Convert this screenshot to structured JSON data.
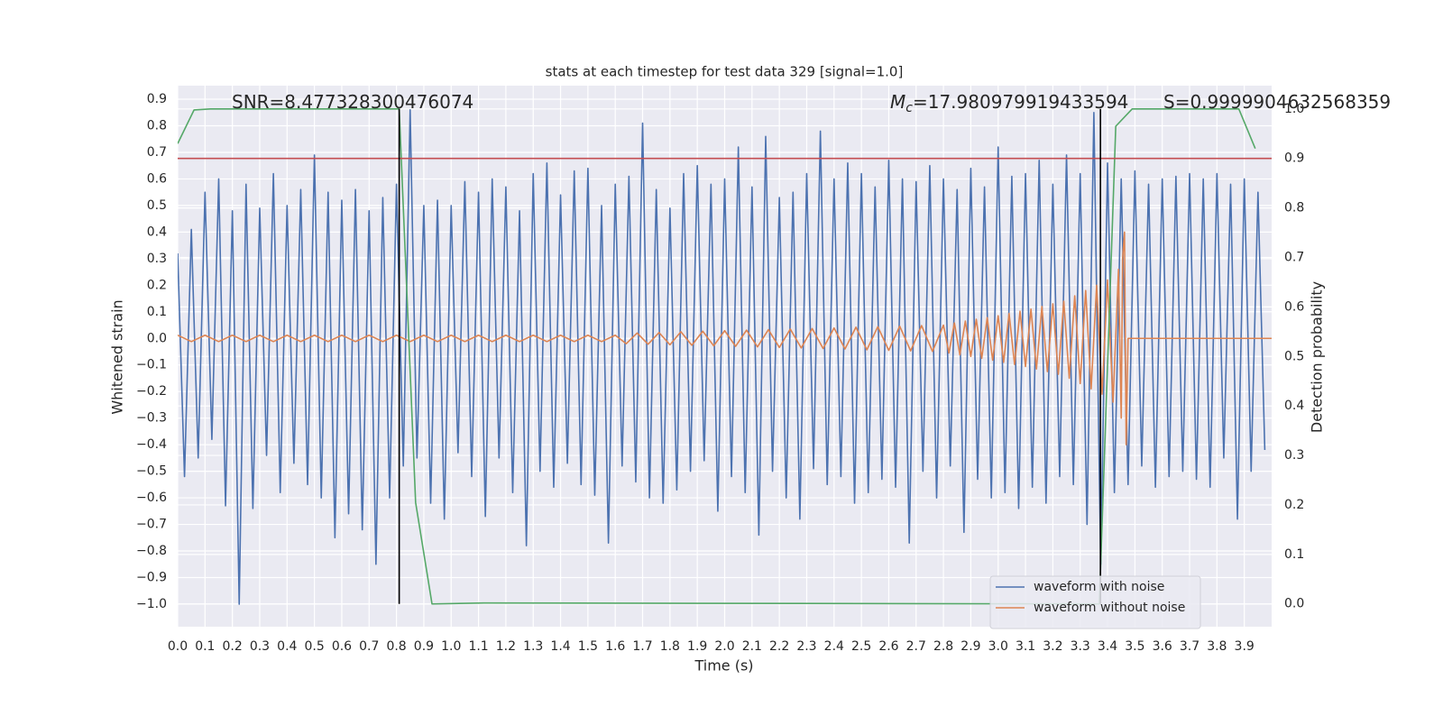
{
  "chart_data": {
    "type": "line",
    "title": "stats at each timestep for test data 329 [signal=1.0]",
    "x_label": "Time (s)",
    "y_label": "Whitened strain",
    "y2_label": "Detection probability",
    "annotations": [
      {
        "text": "SNR=8.477328300476074"
      },
      {
        "symbol": "M",
        "subscript": "c",
        "text": "=17.980979919433594"
      },
      {
        "text": "S=0.9999904632568359"
      }
    ],
    "xlim": [
      0,
      4
    ],
    "ylim": [
      -1.085,
      0.951
    ],
    "y2lim": [
      -0.046,
      1.047
    ],
    "grid": true,
    "legend": "lower right",
    "xticks": [
      {
        "value": 0,
        "label": "0.0"
      },
      {
        "value": 0.1,
        "label": "0.1"
      },
      {
        "value": 0.2,
        "label": "0.2"
      },
      {
        "value": 0.3,
        "label": "0.3"
      },
      {
        "value": 0.4,
        "label": "0.4"
      },
      {
        "value": 0.5,
        "label": "0.5"
      },
      {
        "value": 0.6,
        "label": "0.6"
      },
      {
        "value": 0.7,
        "label": "0.7"
      },
      {
        "value": 0.8,
        "label": "0.8"
      },
      {
        "value": 0.9,
        "label": "0.9"
      },
      {
        "value": 1,
        "label": "1.0"
      },
      {
        "value": 1.1,
        "label": "1.1"
      },
      {
        "value": 1.2,
        "label": "1.2"
      },
      {
        "value": 1.3,
        "label": "1.3"
      },
      {
        "value": 1.4,
        "label": "1.4"
      },
      {
        "value": 1.5,
        "label": "1.5"
      },
      {
        "value": 1.6,
        "label": "1.6"
      },
      {
        "value": 1.7,
        "label": "1.7"
      },
      {
        "value": 1.8,
        "label": "1.8"
      },
      {
        "value": 1.9,
        "label": "1.9"
      },
      {
        "value": 2,
        "label": "2.0"
      },
      {
        "value": 2.1,
        "label": "2.1"
      },
      {
        "value": 2.2,
        "label": "2.2"
      },
      {
        "value": 2.3,
        "label": "2.3"
      },
      {
        "value": 2.4,
        "label": "2.4"
      },
      {
        "value": 2.5,
        "label": "2.5"
      },
      {
        "value": 2.6,
        "label": "2.6"
      },
      {
        "value": 2.7,
        "label": "2.7"
      },
      {
        "value": 2.8,
        "label": "2.8"
      },
      {
        "value": 2.9,
        "label": "2.9"
      },
      {
        "value": 3,
        "label": "3.0"
      },
      {
        "value": 3.1,
        "label": "3.1"
      },
      {
        "value": 3.2,
        "label": "3.2"
      },
      {
        "value": 3.3,
        "label": "3.3"
      },
      {
        "value": 3.4,
        "label": "3.4"
      },
      {
        "value": 3.5,
        "label": "3.5"
      },
      {
        "value": 3.6,
        "label": "3.6"
      },
      {
        "value": 3.7,
        "label": "3.7"
      },
      {
        "value": 3.8,
        "label": "3.8"
      },
      {
        "value": 3.9,
        "label": "3.9"
      }
    ],
    "yticks": [
      {
        "value": -1,
        "label": "−1.0"
      },
      {
        "value": -0.9,
        "label": "−0.9"
      },
      {
        "value": -0.8,
        "label": "−0.8"
      },
      {
        "value": -0.7,
        "label": "−0.7"
      },
      {
        "value": -0.6,
        "label": "−0.6"
      },
      {
        "value": -0.5,
        "label": "−0.5"
      },
      {
        "value": -0.4,
        "label": "−0.4"
      },
      {
        "value": -0.3,
        "label": "−0.3"
      },
      {
        "value": -0.2,
        "label": "−0.2"
      },
      {
        "value": -0.1,
        "label": "−0.1"
      },
      {
        "value": 0,
        "label": "0.0"
      },
      {
        "value": 0.1,
        "label": "0.1"
      },
      {
        "value": 0.2,
        "label": "0.2"
      },
      {
        "value": 0.3,
        "label": "0.3"
      },
      {
        "value": 0.4,
        "label": "0.4"
      },
      {
        "value": 0.5,
        "label": "0.5"
      },
      {
        "value": 0.6,
        "label": "0.6"
      },
      {
        "value": 0.7,
        "label": "0.7"
      },
      {
        "value": 0.8,
        "label": "0.8"
      },
      {
        "value": 0.9,
        "label": "0.9"
      }
    ],
    "y2ticks": [
      {
        "value": 0,
        "label": "0.0"
      },
      {
        "value": 0.1,
        "label": "0.1"
      },
      {
        "value": 0.2,
        "label": "0.2"
      },
      {
        "value": 0.3,
        "label": "0.3"
      },
      {
        "value": 0.4,
        "label": "0.4"
      },
      {
        "value": 0.5,
        "label": "0.5"
      },
      {
        "value": 0.6,
        "label": "0.6"
      },
      {
        "value": 0.7,
        "label": "0.7"
      },
      {
        "value": 0.8,
        "label": "0.8"
      },
      {
        "value": 0.9,
        "label": "0.9"
      },
      {
        "value": 1,
        "label": "1.0"
      }
    ],
    "series": [
      {
        "name": "waveform with noise",
        "color": "#4c72b0",
        "axis": "y",
        "x": [
          0,
          0.025,
          0.05,
          0.075,
          0.1,
          0.125,
          0.15,
          0.175,
          0.2,
          0.225,
          0.25,
          0.275,
          0.3,
          0.325,
          0.35,
          0.375,
          0.4,
          0.425,
          0.45,
          0.475,
          0.5,
          0.525,
          0.55,
          0.575,
          0.6,
          0.625,
          0.65,
          0.675,
          0.7,
          0.725,
          0.75,
          0.775,
          0.8,
          0.825,
          0.85,
          0.875,
          0.9,
          0.925,
          0.95,
          0.975,
          1,
          1.025,
          1.05,
          1.075,
          1.1,
          1.125,
          1.15,
          1.175,
          1.2,
          1.225,
          1.25,
          1.275,
          1.3,
          1.325,
          1.35,
          1.375,
          1.4,
          1.425,
          1.45,
          1.475,
          1.5,
          1.525,
          1.55,
          1.575,
          1.6,
          1.625,
          1.65,
          1.675,
          1.7,
          1.725,
          1.75,
          1.775,
          1.8,
          1.825,
          1.85,
          1.875,
          1.9,
          1.925,
          1.95,
          1.975,
          2,
          2.025,
          2.05,
          2.075,
          2.1,
          2.125,
          2.15,
          2.175,
          2.2,
          2.225,
          2.25,
          2.275,
          2.3,
          2.325,
          2.35,
          2.375,
          2.4,
          2.425,
          2.45,
          2.475,
          2.5,
          2.525,
          2.55,
          2.575,
          2.6,
          2.625,
          2.65,
          2.675,
          2.7,
          2.725,
          2.75,
          2.775,
          2.8,
          2.825,
          2.85,
          2.875,
          2.9,
          2.925,
          2.95,
          2.975,
          3,
          3.025,
          3.05,
          3.075,
          3.1,
          3.125,
          3.15,
          3.175,
          3.2,
          3.225,
          3.25,
          3.275,
          3.3,
          3.325,
          3.35,
          3.375,
          3.4,
          3.425,
          3.45,
          3.475,
          3.5,
          3.525,
          3.55,
          3.575,
          3.6,
          3.625,
          3.65,
          3.675,
          3.7,
          3.725,
          3.75,
          3.775,
          3.8,
          3.825,
          3.85,
          3.875,
          3.9,
          3.925,
          3.95,
          3.975
        ],
        "values": [
          0.32,
          -0.52,
          0.41,
          -0.45,
          0.55,
          -0.38,
          0.6,
          -0.63,
          0.48,
          -1.0,
          0.58,
          -0.64,
          0.49,
          -0.44,
          0.62,
          -0.58,
          0.5,
          -0.47,
          0.56,
          -0.55,
          0.69,
          -0.6,
          0.55,
          -0.75,
          0.52,
          -0.66,
          0.56,
          -0.72,
          0.48,
          -0.85,
          0.53,
          -0.6,
          0.58,
          -0.48,
          0.86,
          -0.45,
          0.5,
          -0.62,
          0.52,
          -0.68,
          0.5,
          -0.43,
          0.59,
          -0.52,
          0.55,
          -0.67,
          0.6,
          -0.45,
          0.57,
          -0.58,
          0.48,
          -0.78,
          0.62,
          -0.5,
          0.66,
          -0.56,
          0.54,
          -0.47,
          0.63,
          -0.55,
          0.64,
          -0.59,
          0.5,
          -0.77,
          0.58,
          -0.48,
          0.61,
          -0.54,
          0.81,
          -0.6,
          0.56,
          -0.62,
          0.49,
          -0.57,
          0.62,
          -0.5,
          0.65,
          -0.46,
          0.58,
          -0.65,
          0.6,
          -0.52,
          0.72,
          -0.58,
          0.57,
          -0.74,
          0.76,
          -0.5,
          0.53,
          -0.6,
          0.55,
          -0.68,
          0.62,
          -0.49,
          0.78,
          -0.55,
          0.6,
          -0.52,
          0.66,
          -0.62,
          0.62,
          -0.58,
          0.57,
          -0.53,
          0.67,
          -0.56,
          0.6,
          -0.77,
          0.59,
          -0.5,
          0.65,
          -0.6,
          0.6,
          -0.48,
          0.56,
          -0.73,
          0.64,
          -0.53,
          0.57,
          -0.6,
          0.72,
          -0.58,
          0.61,
          -0.64,
          0.62,
          -0.56,
          0.67,
          -0.62,
          0.58,
          -0.52,
          0.69,
          -0.55,
          0.62,
          -0.7,
          0.85,
          -0.85,
          0.66,
          -0.58,
          0.6,
          -0.55,
          0.63,
          -0.48,
          0.58,
          -0.56,
          0.6,
          -0.52,
          0.61,
          -0.5,
          0.62,
          -0.53,
          0.6,
          -0.56,
          0.62,
          -0.45,
          0.58,
          -0.68,
          0.6,
          -0.5,
          0.55,
          -0.42
        ]
      },
      {
        "name": "waveform without noise",
        "color": "#dd8452",
        "axis": "y",
        "x": [
          0,
          0.05,
          0.1,
          0.15,
          0.2,
          0.25,
          0.3,
          0.35,
          0.4,
          0.45,
          0.5,
          0.55,
          0.6,
          0.65,
          0.7,
          0.75,
          0.8,
          0.85,
          0.9,
          0.95,
          1,
          1.05,
          1.1,
          1.15,
          1.2,
          1.25,
          1.3,
          1.35,
          1.4,
          1.45,
          1.5,
          1.55,
          1.6,
          1.64,
          1.68,
          1.72,
          1.76,
          1.8,
          1.84,
          1.88,
          1.92,
          1.96,
          2,
          2.04,
          2.08,
          2.12,
          2.16,
          2.2,
          2.24,
          2.28,
          2.32,
          2.36,
          2.4,
          2.44,
          2.48,
          2.52,
          2.56,
          2.6,
          2.64,
          2.68,
          2.72,
          2.76,
          2.8,
          2.82,
          2.84,
          2.86,
          2.88,
          2.9,
          2.92,
          2.94,
          2.96,
          2.98,
          3,
          3.02,
          3.04,
          3.06,
          3.08,
          3.1,
          3.12,
          3.14,
          3.16,
          3.18,
          3.2,
          3.22,
          3.24,
          3.26,
          3.28,
          3.3,
          3.32,
          3.34,
          3.36,
          3.38,
          3.4,
          3.42,
          3.44,
          3.45,
          3.455,
          3.462,
          3.468,
          3.475,
          4
        ],
        "values": [
          0.012,
          -0.012,
          0.012,
          -0.012,
          0.012,
          -0.012,
          0.012,
          -0.012,
          0.012,
          -0.012,
          0.012,
          -0.012,
          0.012,
          -0.012,
          0.012,
          -0.012,
          0.012,
          -0.012,
          0.012,
          -0.012,
          0.012,
          -0.012,
          0.012,
          -0.012,
          0.012,
          -0.012,
          0.012,
          -0.012,
          0.012,
          -0.012,
          0.012,
          -0.012,
          0.012,
          -0.02,
          0.02,
          -0.022,
          0.022,
          -0.024,
          0.025,
          -0.026,
          0.027,
          -0.028,
          0.029,
          -0.03,
          0.031,
          -0.032,
          0.033,
          -0.034,
          0.035,
          -0.036,
          0.037,
          -0.038,
          0.039,
          -0.04,
          0.042,
          -0.043,
          0.044,
          -0.045,
          0.046,
          -0.047,
          0.048,
          -0.049,
          0.05,
          -0.055,
          0.058,
          -0.062,
          0.065,
          -0.068,
          0.072,
          -0.075,
          0.078,
          -0.082,
          0.085,
          -0.09,
          0.094,
          -0.098,
          0.102,
          -0.106,
          0.11,
          -0.115,
          0.12,
          -0.125,
          0.13,
          -0.135,
          0.14,
          -0.15,
          0.16,
          -0.17,
          0.18,
          -0.19,
          0.2,
          -0.21,
          0.22,
          -0.24,
          0.26,
          -0.3,
          0.3,
          0.4,
          -0.4,
          0,
          0
        ]
      },
      {
        "color": "#55a868",
        "axis": "y2",
        "x": [
          0,
          0.06,
          0.12,
          0.81,
          0.87,
          0.93,
          1.12,
          3.37,
          3.43,
          3.49,
          3.88,
          3.94
        ],
        "values": [
          0.93,
          0.998,
          1.0,
          1.0,
          0.205,
          0.0,
          0.002,
          0.0,
          0.965,
          1.0,
          1.0,
          0.92
        ]
      }
    ],
    "hlines": [
      {
        "value": 0.9,
        "axis": "y2",
        "color": "#c44e52"
      }
    ],
    "vlines": {
      "x": [
        0.81,
        3.374
      ],
      "y2_from": 0,
      "y2_to": 1,
      "color": "#000000"
    }
  }
}
